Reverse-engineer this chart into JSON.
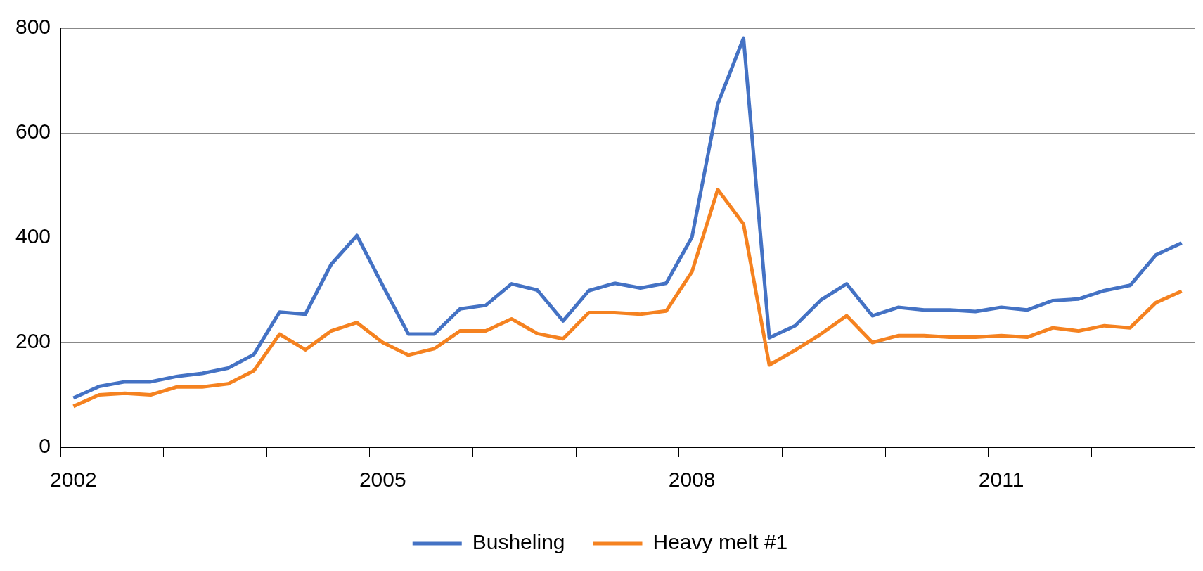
{
  "chart_data": {
    "type": "line",
    "categories": [
      "2002",
      null,
      null,
      null,
      null,
      null,
      null,
      null,
      null,
      null,
      null,
      null,
      "2005",
      null,
      null,
      null,
      null,
      null,
      null,
      null,
      null,
      null,
      null,
      null,
      "2008",
      null,
      null,
      null,
      null,
      null,
      null,
      null,
      null,
      null,
      null,
      null,
      "2011",
      null,
      null,
      null,
      null,
      null,
      null,
      null
    ],
    "series": [
      {
        "name": "Busheling",
        "color": "#4472c4",
        "values": [
          94,
          116,
          125,
          125,
          135,
          141,
          151,
          177,
          258,
          254,
          349,
          404,
          309,
          216,
          216,
          264,
          271,
          312,
          300,
          241,
          299,
          313,
          304,
          313,
          401,
          655,
          781,
          209,
          232,
          281,
          312,
          251,
          267,
          262,
          262,
          259,
          267,
          262,
          280,
          283,
          299,
          309,
          367,
          390
        ]
      },
      {
        "name": "Heavy melt #1",
        "color": "#f58220",
        "values": [
          78,
          100,
          103,
          100,
          115,
          115,
          121,
          146,
          216,
          186,
          222,
          238,
          200,
          176,
          188,
          222,
          222,
          245,
          217,
          207,
          257,
          257,
          254,
          260,
          335,
          492,
          426,
          157,
          185,
          216,
          251,
          200,
          213,
          213,
          210,
          210,
          213,
          210,
          228,
          222,
          232,
          228,
          276,
          298
        ]
      }
    ],
    "ylim": [
      0,
      800
    ],
    "yticks": [
      0,
      200,
      400,
      600,
      800
    ],
    "grid": "y",
    "legend": "bottom",
    "marker": "none",
    "line_style": "solid"
  }
}
